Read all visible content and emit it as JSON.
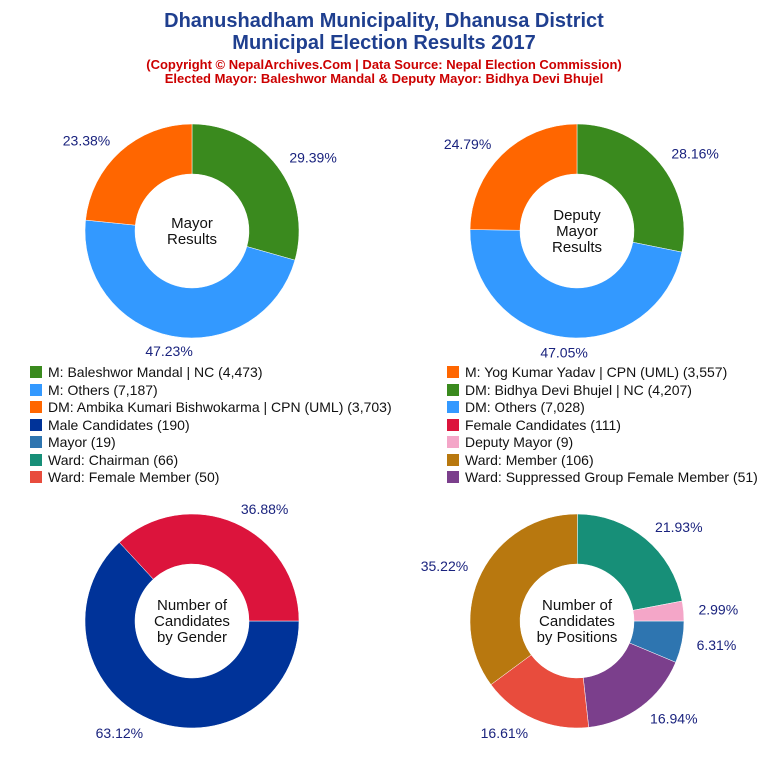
{
  "header": {
    "title_line1": "Dhanushadham Municipality, Dhanusa District",
    "title_line2": "Municipal Election Results 2017",
    "subtitle_line1": "(Copyright © NepalArchives.Com | Data Source: Nepal Election Commission)",
    "subtitle_line2": "Elected Mayor: Baleshwor Mandal & Deputy Mayor: Bidhya Devi Bhujel"
  },
  "legend": [
    {
      "label": "M: Baleshwor Mandal | NC (4,473)",
      "color": "#3a8a1e"
    },
    {
      "label": "M: Yog Kumar Yadav | CPN (UML) (3,557)",
      "color": "#ff6600"
    },
    {
      "label": "M: Others (7,187)",
      "color": "#3399ff"
    },
    {
      "label": "DM: Bidhya Devi Bhujel | NC (4,207)",
      "color": "#3a8a1e"
    },
    {
      "label": "DM: Ambika Kumari Bishwokarma | CPN (UML) (3,703)",
      "color": "#ff6600"
    },
    {
      "label": "DM: Others (7,028)",
      "color": "#3399ff"
    },
    {
      "label": "Male Candidates (190)",
      "color": "#003399"
    },
    {
      "label": "Female Candidates (111)",
      "color": "#dc143c"
    },
    {
      "label": "Mayor (19)",
      "color": "#2e75b0"
    },
    {
      "label": "Deputy Mayor (9)",
      "color": "#f4a6c8"
    },
    {
      "label": "Ward: Chairman (66)",
      "color": "#178f78"
    },
    {
      "label": "Ward: Member (106)",
      "color": "#b8780f"
    },
    {
      "label": "Ward: Female Member (50)",
      "color": "#e84c3d"
    },
    {
      "label": "Ward: Suppressed Group Female Member (51)",
      "color": "#7b3f8c"
    }
  ],
  "chart_data": [
    {
      "type": "pie",
      "center_label": [
        "Mayor",
        "Results"
      ],
      "slices": [
        {
          "label": "M: Baleshwor Mandal | NC",
          "value": 4473,
          "percent": "29.39%",
          "color": "#3a8a1e"
        },
        {
          "label": "M: Others",
          "value": 7187,
          "percent": "47.23%",
          "color": "#3399ff"
        },
        {
          "label": "M: Yog Kumar Yadav | CPN (UML)",
          "value": 3557,
          "percent": "23.38%",
          "color": "#ff6600"
        }
      ]
    },
    {
      "type": "pie",
      "center_label": [
        "Deputy",
        "Mayor",
        "Results"
      ],
      "slices": [
        {
          "label": "DM: Bidhya Devi Bhujel | NC",
          "value": 4207,
          "percent": "28.16%",
          "color": "#3a8a1e"
        },
        {
          "label": "DM: Others",
          "value": 7028,
          "percent": "47.05%",
          "color": "#3399ff"
        },
        {
          "label": "DM: Ambika Kumari Bishwokarma | CPN (UML)",
          "value": 3703,
          "percent": "24.79%",
          "color": "#ff6600"
        }
      ]
    },
    {
      "type": "pie",
      "center_label": [
        "Number of",
        "Candidates",
        "by Gender"
      ],
      "slices": [
        {
          "label": "Male Candidates",
          "value": 190,
          "percent": "63.12%",
          "color": "#003399"
        },
        {
          "label": "Female Candidates",
          "value": 111,
          "percent": "36.88%",
          "color": "#dc143c"
        }
      ]
    },
    {
      "type": "pie",
      "center_label": [
        "Number of",
        "Candidates",
        "by Positions"
      ],
      "slices": [
        {
          "label": "Mayor",
          "value": 19,
          "percent": "6.31%",
          "color": "#2e75b0"
        },
        {
          "label": "Ward: Suppressed Group Female Member",
          "value": 51,
          "percent": "16.94%",
          "color": "#7b3f8c"
        },
        {
          "label": "Ward: Female Member",
          "value": 50,
          "percent": "16.61%",
          "color": "#e84c3d"
        },
        {
          "label": "Ward: Member",
          "value": 106,
          "percent": "35.22%",
          "color": "#b8780f"
        },
        {
          "label": "Ward: Chairman",
          "value": 66,
          "percent": "21.93%",
          "color": "#178f78"
        },
        {
          "label": "Deputy Mayor",
          "value": 9,
          "percent": "2.99%",
          "color": "#f4a6c8"
        }
      ]
    }
  ]
}
